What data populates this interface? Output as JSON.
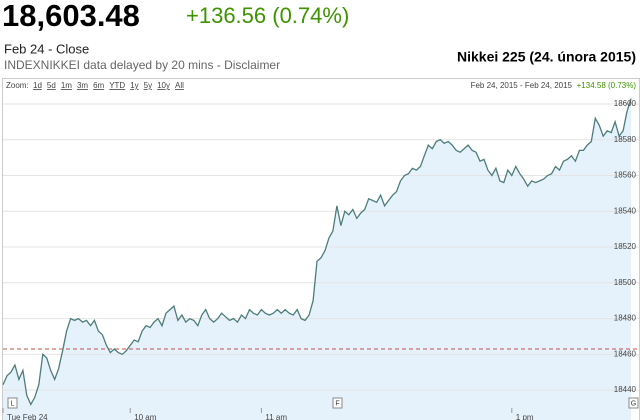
{
  "header": {
    "price": "18,603.48",
    "change": "+136.56 (0.74%)",
    "date": "Feb 24 - Close",
    "source": "INDEXNIKKEI data delayed by 20 mins - Disclaimer",
    "caption": "Nikkei 225 (24. února 2015)"
  },
  "toolbar": {
    "zoom_label": "Zoom:",
    "zoom_options": [
      "1d",
      "5d",
      "1m",
      "3m",
      "6m",
      "YTD",
      "1y",
      "5y",
      "10y",
      "All"
    ],
    "range": "Feb 24, 2015 - Feb 24, 2015",
    "range_change": "+134.58 (0.73%)"
  },
  "flags": [
    "L",
    "F",
    "G"
  ],
  "chart_data": {
    "type": "line",
    "color": "#4d7d7a",
    "fill_color": "#e6f2fb",
    "reference_color": "#c0504d",
    "grid": true,
    "previous_close": 18463,
    "xlim": [
      0,
      160
    ],
    "ylim": [
      18430,
      18605
    ],
    "yticks": [
      18440,
      18460,
      18480,
      18500,
      18520,
      18540,
      18560,
      18580,
      18600
    ],
    "xticks": [
      {
        "value": 0,
        "label": "Tue Feb 24"
      },
      {
        "value": 32,
        "label": "10 am"
      },
      {
        "value": 65,
        "label": "11 am"
      },
      {
        "value": 128,
        "label": "1 pm"
      }
    ],
    "values": [
      18443,
      18448,
      18450,
      18454,
      18446,
      18451,
      18437,
      18432,
      18436,
      18443,
      18460,
      18458,
      18451,
      18446,
      18452,
      18462,
      18473,
      18480,
      18479,
      18480,
      18478,
      18479,
      18476,
      18479,
      18473,
      18471,
      18465,
      18461,
      18463,
      18461,
      18460,
      18462,
      18465,
      18468,
      18467,
      18473,
      18476,
      18475,
      18478,
      18480,
      18476,
      18483,
      18485,
      18487,
      18479,
      18482,
      18478,
      18480,
      18479,
      18476,
      18482,
      18485,
      18480,
      18478,
      18480,
      18483,
      18481,
      18479,
      18480,
      18478,
      18482,
      18480,
      18485,
      18483,
      18482,
      18485,
      18483,
      18482,
      18483,
      18485,
      18483,
      18485,
      18483,
      18482,
      18485,
      18480,
      18479,
      18482,
      18490,
      18512,
      18514,
      18518,
      18525,
      18529,
      18543,
      18532,
      18540,
      18538,
      18541,
      18536,
      18539,
      18541,
      18547,
      18546,
      18545,
      18549,
      18543,
      18546,
      18549,
      18551,
      18557,
      18560,
      18561,
      18564,
      18563,
      18565,
      18571,
      18577,
      18575,
      18579,
      18580,
      18578,
      18579,
      18577,
      18574,
      18573,
      18575,
      18577,
      18574,
      18573,
      18568,
      18569,
      18563,
      18560,
      18564,
      18557,
      18556,
      18563,
      18560,
      18565,
      18561,
      18558,
      18554,
      18557,
      18556,
      18557,
      18558,
      18560,
      18561,
      18565,
      18563,
      18568,
      18569,
      18571,
      18568,
      18574,
      18574,
      18577,
      18579,
      18592,
      18588,
      18582,
      18585,
      18584,
      18590,
      18582,
      18585,
      18596,
      18603
    ]
  }
}
